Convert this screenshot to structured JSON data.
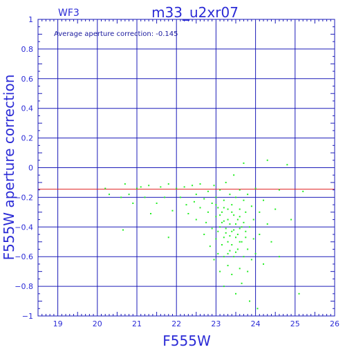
{
  "chart_data": {
    "type": "scatter",
    "chip_label": "WF3",
    "title": "m33_u2xr07",
    "annotation": "Average aperture correction: -0.145",
    "xlabel": "F555W",
    "ylabel": "F555W aperture correction",
    "xlim": [
      18.5,
      26
    ],
    "ylim": [
      -1,
      1
    ],
    "x_ticks": [
      19,
      20,
      21,
      22,
      23,
      24,
      25,
      26
    ],
    "y_ticks": [
      -1,
      -0.8,
      -0.6,
      -0.4,
      -0.2,
      0,
      0.2,
      0.4,
      0.6,
      0.8,
      1
    ],
    "y_tick_labels": [
      "−1",
      "−0.8",
      "−0.6",
      "−0.4",
      "−0.2",
      "0",
      "0.2",
      "0.4",
      "0.6",
      "0.8",
      "1"
    ],
    "grid": true,
    "reference_line": {
      "y": -0.145,
      "color": "#e02020"
    },
    "colors": {
      "axes": "#1a1ab8",
      "points": "#22ee22",
      "text": "#2b2bd6"
    },
    "points": [
      [
        20.2,
        -0.14
      ],
      [
        20.3,
        -0.18
      ],
      [
        20.6,
        -0.2
      ],
      [
        20.7,
        -0.11
      ],
      [
        20.8,
        -0.18
      ],
      [
        20.9,
        -0.24
      ],
      [
        20.65,
        -0.42
      ],
      [
        21.0,
        -0.14
      ],
      [
        21.1,
        -0.13
      ],
      [
        21.2,
        -0.2
      ],
      [
        21.3,
        -0.12
      ],
      [
        21.35,
        -0.31
      ],
      [
        21.5,
        -0.24
      ],
      [
        21.6,
        -0.13
      ],
      [
        21.7,
        -0.2
      ],
      [
        21.8,
        -0.11
      ],
      [
        21.9,
        -0.29
      ],
      [
        21.8,
        -0.47
      ],
      [
        22.0,
        -0.14
      ],
      [
        22.1,
        -0.2
      ],
      [
        22.2,
        -0.13
      ],
      [
        22.25,
        -0.25
      ],
      [
        22.3,
        -0.31
      ],
      [
        22.4,
        -0.12
      ],
      [
        22.45,
        -0.23
      ],
      [
        22.5,
        -0.18
      ],
      [
        22.5,
        -0.35
      ],
      [
        22.6,
        -0.27
      ],
      [
        22.6,
        -0.11
      ],
      [
        22.7,
        -0.21
      ],
      [
        22.7,
        -0.45
      ],
      [
        22.75,
        -0.37
      ],
      [
        22.8,
        -0.16
      ],
      [
        22.8,
        -0.3
      ],
      [
        22.85,
        -0.53
      ],
      [
        22.9,
        -0.24
      ],
      [
        22.9,
        -0.41
      ],
      [
        22.95,
        -0.62
      ],
      [
        22.95,
        -0.12
      ],
      [
        23.0,
        -0.2
      ],
      [
        23.0,
        -0.33
      ],
      [
        23.0,
        -0.48
      ],
      [
        23.05,
        -0.58
      ],
      [
        23.05,
        -0.27
      ],
      [
        23.1,
        -0.15
      ],
      [
        23.1,
        -0.4
      ],
      [
        23.1,
        -0.7
      ],
      [
        23.15,
        -0.3
      ],
      [
        23.15,
        -0.52
      ],
      [
        23.2,
        -0.22
      ],
      [
        23.2,
        -0.36
      ],
      [
        23.2,
        -0.6
      ],
      [
        23.2,
        -0.8
      ],
      [
        23.25,
        -0.44
      ],
      [
        23.25,
        -0.1
      ],
      [
        23.3,
        -0.28
      ],
      [
        23.3,
        -0.5
      ],
      [
        23.3,
        -0.66
      ],
      [
        23.35,
        -0.18
      ],
      [
        23.35,
        -0.38
      ],
      [
        23.35,
        -0.56
      ],
      [
        23.4,
        -0.25
      ],
      [
        23.4,
        -0.43
      ],
      [
        23.4,
        -0.72
      ],
      [
        23.45,
        -0.32
      ],
      [
        23.45,
        -0.6
      ],
      [
        23.45,
        -0.05
      ],
      [
        23.5,
        -0.2
      ],
      [
        23.5,
        -0.47
      ],
      [
        23.5,
        -0.85
      ],
      [
        23.55,
        -0.35
      ],
      [
        23.55,
        -0.55
      ],
      [
        23.6,
        -0.28
      ],
      [
        23.6,
        -0.41
      ],
      [
        23.6,
        -0.68
      ],
      [
        23.6,
        -0.15
      ],
      [
        23.65,
        -0.5
      ],
      [
        23.65,
        -0.78
      ],
      [
        23.7,
        -0.22
      ],
      [
        23.7,
        -0.37
      ],
      [
        23.7,
        -0.6
      ],
      [
        23.7,
        0.03
      ],
      [
        23.75,
        -0.3
      ],
      [
        23.75,
        -0.47
      ],
      [
        23.8,
        -0.55
      ],
      [
        23.8,
        -0.7
      ],
      [
        23.8,
        -0.18
      ],
      [
        23.85,
        -0.4
      ],
      [
        23.85,
        -0.9
      ],
      [
        23.9,
        -0.26
      ],
      [
        23.9,
        -0.62
      ],
      [
        23.95,
        -0.35
      ],
      [
        23.95,
        -0.48
      ],
      [
        24.0,
        -0.14
      ],
      [
        24.0,
        -0.58
      ],
      [
        24.05,
        -0.95
      ],
      [
        24.1,
        -0.3
      ],
      [
        24.1,
        -0.45
      ],
      [
        24.2,
        -0.22
      ],
      [
        24.2,
        -0.65
      ],
      [
        24.3,
        0.05
      ],
      [
        24.3,
        -0.38
      ],
      [
        24.4,
        -0.5
      ],
      [
        24.5,
        -0.28
      ],
      [
        24.6,
        -0.6
      ],
      [
        24.6,
        -0.15
      ],
      [
        24.8,
        0.02
      ],
      [
        24.9,
        -0.35
      ],
      [
        25.1,
        -0.85
      ],
      [
        25.2,
        -0.16
      ],
      [
        23.0,
        -0.25
      ],
      [
        23.1,
        -0.32
      ],
      [
        23.2,
        -0.27
      ],
      [
        23.3,
        -0.35
      ],
      [
        23.4,
        -0.3
      ],
      [
        23.5,
        -0.38
      ],
      [
        23.6,
        -0.33
      ],
      [
        23.25,
        -0.41
      ],
      [
        23.35,
        -0.46
      ],
      [
        23.45,
        -0.42
      ],
      [
        23.55,
        -0.45
      ],
      [
        23.15,
        -0.37
      ],
      [
        23.05,
        -0.43
      ],
      [
        23.65,
        -0.4
      ],
      [
        23.75,
        -0.43
      ],
      [
        23.4,
        -0.52
      ],
      [
        23.5,
        -0.57
      ],
      [
        23.3,
        -0.58
      ],
      [
        23.2,
        -0.47
      ],
      [
        23.6,
        -0.5
      ]
    ]
  }
}
